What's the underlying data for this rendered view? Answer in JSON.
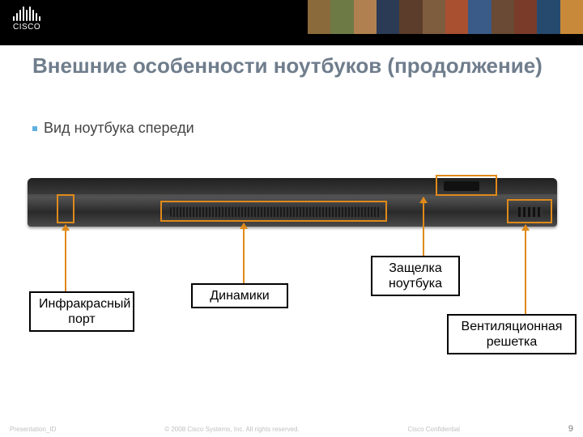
{
  "brand": {
    "name": "CISCO"
  },
  "top_strip_colors": [
    "#8a6a3a",
    "#6e7a46",
    "#b08050",
    "#2b3a55",
    "#5c3c2a",
    "#7e5c3e",
    "#a85030",
    "#3a5a88",
    "#6a4a34",
    "#7a3c28",
    "#264a6e",
    "#c88a3a"
  ],
  "heading": {
    "text": "Внешние особенности ноутбуков (продолжение)",
    "color": "#6f7d8c"
  },
  "subheading": {
    "bullet_color": "#5fb0e0",
    "text": "Вид ноутбука спереди",
    "color": "#444444"
  },
  "highlight": {
    "border_color": "#e08a1a"
  },
  "arrows": {
    "color": "#e08a1a"
  },
  "labels": {
    "ir": {
      "text": "Инфракрасный\nпорт"
    },
    "speakers": {
      "text": "Динамики"
    },
    "latch": {
      "text": "Защелка\nноутбука"
    },
    "vent": {
      "text": "Вентиляционная\nрешетка"
    }
  },
  "footer": {
    "left": "Presentation_ID",
    "center": "© 2008 Cisco Systems, Inc. All rights reserved.",
    "right": "Cisco Confidential",
    "page": "9"
  }
}
